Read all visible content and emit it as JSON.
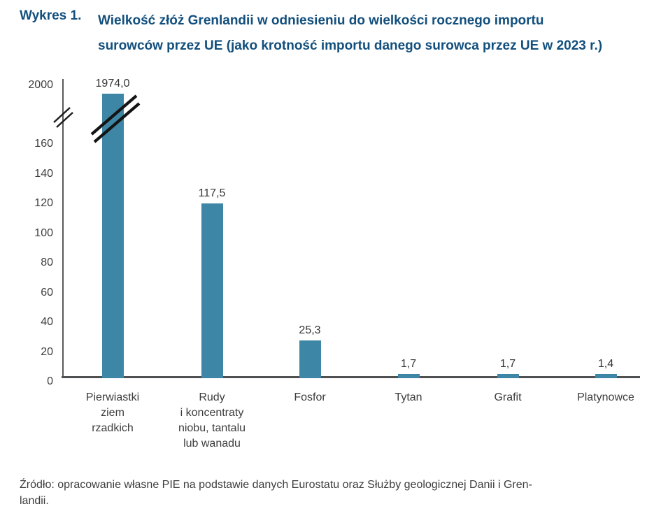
{
  "header": {
    "label": "Wykres 1.",
    "title_line1": "Wielkość złóż Grenlandii w odniesieniu do wielkości rocznego importu",
    "title_line2": "surowców przez UE (jako krotność importu danego surowca przez UE w 2023 r.)"
  },
  "chart_data": {
    "type": "bar",
    "title": "Wielkość złóż Grenlandii w odniesieniu do wielkości rocznego importu surowców przez UE (jako krotność importu danego surowca przez UE w 2023 r.)",
    "categories": [
      "Pierwiastki\nziem\nrzadkich",
      "Rudy\ni koncentraty\nniobu, tantalu\nlub wanadu",
      "Fosfor",
      "Tytan",
      "Grafit",
      "Platynowce"
    ],
    "values": [
      1974.0,
      117.5,
      25.3,
      1.7,
      1.7,
      1.4
    ],
    "value_labels": [
      "1974,0",
      "117,5",
      "25,3",
      "1,7",
      "1,7",
      "1,4"
    ],
    "xlabel": "",
    "ylabel": "",
    "y_axis": {
      "linear_ticks": [
        0,
        20,
        40,
        60,
        80,
        100,
        120,
        140,
        160
      ],
      "top_tick_label": "2000",
      "broken_axis": true,
      "ylim_linear": [
        0,
        170
      ]
    },
    "grid": false,
    "legend": false,
    "bar_color": "#3E86A5"
  },
  "source": {
    "line1": "Źródło: opracowanie własne PIE na podstawie danych Eurostatu oraz Służby geologicznej Danii i Gren-",
    "line2": "landii."
  },
  "colors": {
    "title_navy": "#124F7D",
    "bar_teal": "#3E86A5",
    "axis_gray": "#4F5052",
    "text_dark": "#3D3D3D"
  }
}
